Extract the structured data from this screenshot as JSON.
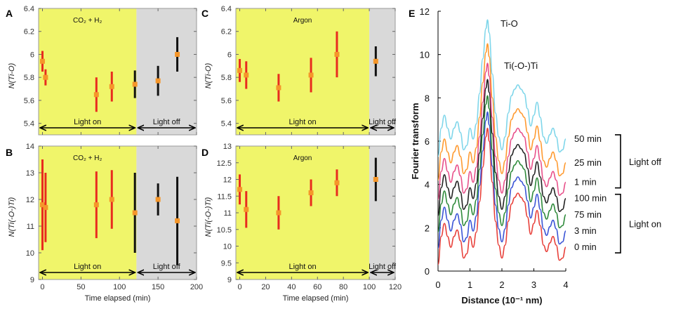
{
  "chart_data": [
    {
      "id": "A",
      "type": "scatter",
      "panel_label": "A",
      "condition_label": "CO₂ + H₂",
      "ylabel": "N(Ti-O)",
      "xlabel": "",
      "xlim": [
        -5,
        200
      ],
      "ylim": [
        5.3,
        6.4
      ],
      "xticks": [
        0,
        50,
        100,
        150,
        200
      ],
      "yticks": [
        5.4,
        5.6,
        5.8,
        6.0,
        6.2,
        6.4
      ],
      "ytick_labels": [
        "5.4",
        "5.6",
        "5.8",
        "6",
        "6.2",
        "6.4"
      ],
      "show_xtick_labels": false,
      "light_on_span": [
        -5,
        122
      ],
      "light_off_span": [
        122,
        200
      ],
      "light_on_label": "Light on",
      "light_off_label": "Light off",
      "points": [
        {
          "x": 0,
          "y": 5.94,
          "err": 0.09,
          "phase": "on"
        },
        {
          "x": 4,
          "y": 5.8,
          "err": 0.07,
          "phase": "on"
        },
        {
          "x": 70,
          "y": 5.65,
          "err": 0.15,
          "phase": "on"
        },
        {
          "x": 90,
          "y": 5.72,
          "err": 0.13,
          "phase": "on"
        },
        {
          "x": 120,
          "y": 5.74,
          "err": 0.12,
          "phase": "off"
        },
        {
          "x": 150,
          "y": 5.77,
          "err": 0.13,
          "phase": "off"
        },
        {
          "x": 175,
          "y": 6.0,
          "err": 0.15,
          "phase": "off"
        }
      ]
    },
    {
      "id": "B",
      "type": "scatter",
      "panel_label": "B",
      "condition_label": "CO₂ + H₂",
      "ylabel": "N(Ti(-O-)Ti)",
      "xlabel": "Time elapsed (min)",
      "xlim": [
        -5,
        200
      ],
      "ylim": [
        9,
        14
      ],
      "xticks": [
        0,
        50,
        100,
        150,
        200
      ],
      "yticks": [
        9,
        10,
        11,
        12,
        13,
        14
      ],
      "ytick_labels": [
        "9",
        "10",
        "11",
        "12",
        "13",
        "14"
      ],
      "show_xtick_labels": true,
      "light_on_span": [
        -5,
        122
      ],
      "light_off_span": [
        122,
        200
      ],
      "light_on_label": "Light on",
      "light_off_label": "Light off",
      "points": [
        {
          "x": 0,
          "y": 11.8,
          "err": 1.7,
          "phase": "on"
        },
        {
          "x": 4,
          "y": 11.7,
          "err": 1.3,
          "phase": "on"
        },
        {
          "x": 70,
          "y": 11.8,
          "err": 1.25,
          "phase": "on"
        },
        {
          "x": 90,
          "y": 12.0,
          "err": 1.1,
          "phase": "on"
        },
        {
          "x": 120,
          "y": 11.5,
          "err": 1.5,
          "phase": "off"
        },
        {
          "x": 150,
          "y": 12.0,
          "err": 0.6,
          "phase": "off"
        },
        {
          "x": 175,
          "y": 11.2,
          "err": 1.65,
          "phase": "off"
        }
      ]
    },
    {
      "id": "C",
      "type": "scatter",
      "panel_label": "C",
      "condition_label": "Argon",
      "ylabel": "N(Ti-O)",
      "xlabel": "",
      "xlim": [
        -3,
        120
      ],
      "ylim": [
        5.3,
        6.4
      ],
      "xticks": [
        0,
        20,
        40,
        60,
        80,
        100,
        120
      ],
      "yticks": [
        5.4,
        5.6,
        5.8,
        6.0,
        6.2,
        6.4
      ],
      "ytick_labels": [
        "5.4",
        "5.6",
        "5.8",
        "6",
        "6.2",
        "6.4"
      ],
      "show_xtick_labels": false,
      "light_on_span": [
        -3,
        100
      ],
      "light_off_span": [
        100,
        120
      ],
      "light_on_label": "Light on",
      "light_off_label": "Light off",
      "points": [
        {
          "x": 0,
          "y": 5.86,
          "err": 0.1,
          "phase": "on"
        },
        {
          "x": 5,
          "y": 5.82,
          "err": 0.12,
          "phase": "on"
        },
        {
          "x": 30,
          "y": 5.71,
          "err": 0.12,
          "phase": "on"
        },
        {
          "x": 55,
          "y": 5.82,
          "err": 0.15,
          "phase": "on"
        },
        {
          "x": 75,
          "y": 6.0,
          "err": 0.2,
          "phase": "on"
        },
        {
          "x": 105,
          "y": 5.94,
          "err": 0.13,
          "phase": "off"
        }
      ]
    },
    {
      "id": "D",
      "type": "scatter",
      "panel_label": "D",
      "condition_label": "Argon",
      "ylabel": "N(Ti(-O-)Ti)",
      "xlabel": "Time elapsed (min)",
      "xlim": [
        -3,
        120
      ],
      "ylim": [
        9,
        13
      ],
      "xticks": [
        0,
        20,
        40,
        60,
        80,
        100,
        120
      ],
      "yticks": [
        9,
        9.5,
        10,
        10.5,
        11,
        11.5,
        12,
        12.5,
        13
      ],
      "ytick_labels": [
        "9",
        "9.5",
        "10",
        "10.5",
        "11",
        "11.5",
        "12",
        "12.5",
        "13"
      ],
      "show_xtick_labels": true,
      "light_on_span": [
        -3,
        100
      ],
      "light_off_span": [
        100,
        120
      ],
      "light_on_label": "Light on",
      "light_off_label": "Light off",
      "points": [
        {
          "x": 0,
          "y": 11.7,
          "err": 0.45,
          "phase": "on"
        },
        {
          "x": 5,
          "y": 11.1,
          "err": 0.55,
          "phase": "on"
        },
        {
          "x": 30,
          "y": 11.0,
          "err": 0.5,
          "phase": "on"
        },
        {
          "x": 55,
          "y": 11.6,
          "err": 0.4,
          "phase": "on"
        },
        {
          "x": 75,
          "y": 11.9,
          "err": 0.4,
          "phase": "on"
        },
        {
          "x": 105,
          "y": 12.0,
          "err": 0.65,
          "phase": "off"
        }
      ]
    },
    {
      "id": "E",
      "type": "line",
      "panel_label": "E",
      "xlabel": "Distance (10⁻¹ nm)",
      "ylabel": "Fourier transform",
      "xlim": [
        0,
        4
      ],
      "ylim": [
        0,
        12
      ],
      "xticks": [
        0,
        1,
        2,
        3,
        4
      ],
      "yticks": [
        0,
        2,
        4,
        6,
        8,
        10,
        12
      ],
      "peak_labels": [
        "Ti-O",
        "Ti(-O-)Ti"
      ],
      "group_labels": {
        "light_off": "Light off",
        "light_on": "Light on"
      },
      "x": [
        0,
        0.1,
        0.2,
        0.3,
        0.4,
        0.5,
        0.6,
        0.7,
        0.8,
        0.9,
        1.0,
        1.1,
        1.2,
        1.3,
        1.4,
        1.5,
        1.55,
        1.6,
        1.7,
        1.8,
        1.9,
        2.0,
        2.1,
        2.2,
        2.3,
        2.4,
        2.5,
        2.6,
        2.7,
        2.8,
        2.9,
        3.0,
        3.1,
        3.2,
        3.3,
        3.4,
        3.5,
        3.6,
        3.7,
        3.8,
        3.9,
        4.0
      ],
      "profile": [
        0.0,
        1.3,
        1.9,
        1.3,
        0.8,
        1.3,
        1.6,
        1.1,
        0.3,
        0.5,
        1.3,
        0.8,
        1.5,
        2.9,
        4.5,
        5.9,
        6.3,
        5.7,
        3.8,
        2.0,
        0.9,
        0.3,
        0.9,
        2.0,
        2.8,
        3.1,
        3.3,
        3.1,
        2.9,
        2.2,
        1.4,
        1.9,
        2.5,
        1.8,
        0.9,
        0.6,
        1.0,
        1.3,
        0.9,
        0.2,
        0.3,
        0.8
      ],
      "series": [
        {
          "name": "0 min",
          "group": "light_on",
          "offset": 0.3,
          "color": "#e8403a"
        },
        {
          "name": "3 min",
          "group": "light_on",
          "offset": 1.05,
          "color": "#3a54d6"
        },
        {
          "name": "75 min",
          "group": "light_on",
          "offset": 1.8,
          "color": "#2e8a3a"
        },
        {
          "name": "100 min",
          "group": "light_on",
          "offset": 2.55,
          "color": "#222222"
        },
        {
          "name": "1 min",
          "group": "light_off",
          "offset": 3.3,
          "color": "#e8508a"
        },
        {
          "name": "25 min",
          "group": "light_off",
          "offset": 4.2,
          "color": "#ff9a30"
        },
        {
          "name": "50 min",
          "group": "light_off",
          "offset": 5.3,
          "color": "#7fd6ea"
        }
      ]
    }
  ],
  "colors": {
    "light_on_bg": "#f0f56a",
    "light_off_bg": "#d9d9d9",
    "on_errorbar": "#e82c1e",
    "off_errorbar": "#111111",
    "marker": "#f5962a"
  }
}
